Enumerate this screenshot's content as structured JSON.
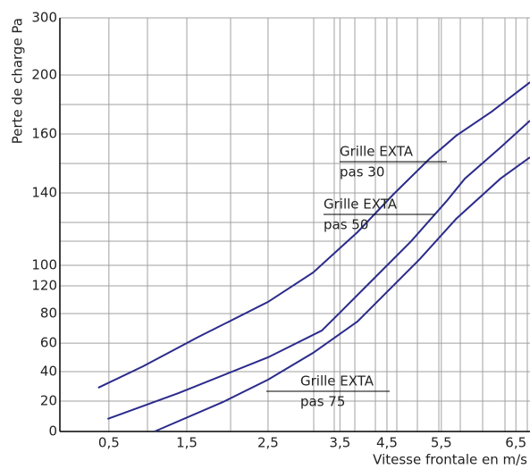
{
  "chart_data": {
    "type": "line",
    "xlabel": "Vitesse frontale en m/s",
    "ylabel": "Perte de charge Pa",
    "xlim": [
      0,
      7
    ],
    "ylim": [
      0,
      300
    ],
    "xticks": [
      {
        "value": 0.73,
        "label": "0,5"
      },
      {
        "value": 1.89,
        "label": "1,5"
      },
      {
        "value": 3.1,
        "label": "2,5"
      },
      {
        "value": 4.17,
        "label": "3,5"
      },
      {
        "value": 4.87,
        "label": "4,5"
      },
      {
        "value": 5.68,
        "label": "5,5"
      },
      {
        "value": 6.79,
        "label": "6,5"
      }
    ],
    "yticks": [
      0,
      {
        "value": 22,
        "label": "20"
      },
      {
        "value": 43.4,
        "label": "40"
      },
      {
        "value": 64.1,
        "label": "60"
      },
      {
        "value": 85.5,
        "label": "80"
      },
      {
        "value": 105.6,
        "label": "120"
      },
      {
        "value": 120.5,
        "label": "100"
      },
      {
        "value": 173,
        "label": "140"
      },
      {
        "value": 215.8,
        "label": "160"
      },
      {
        "value": 258.5,
        "label": "200"
      },
      300
    ],
    "grid": true,
    "series": [
      {
        "color": "#2b2b8c",
        "x": [
          0.57,
          1.24,
          2.04,
          3.1,
          3.77,
          4.43,
          4.96,
          5.5,
          5.9,
          6.43,
          7.0
        ],
        "values": [
          31.7,
          47.3,
          68.0,
          94.0,
          115.3,
          144.5,
          171.7,
          197.6,
          214.5,
          232.0,
          253.3
        ]
      },
      {
        "color": "#2b2b8c",
        "x": [
          0.71,
          1.77,
          3.1,
          3.9,
          4.17,
          4.7,
          5.23,
          5.76,
          6.03,
          6.56,
          7.0
        ],
        "values": [
          9.1,
          27.9,
          53.8,
          73.2,
          86.2,
          112.1,
          138.0,
          167.2,
          183.4,
          206.0,
          225.5
        ]
      },
      {
        "color": "#2b2b8c",
        "x": [
          1.41,
          2.43,
          3.1,
          3.77,
          4.43,
          4.96,
          5.36,
          5.9,
          6.56,
          7.0
        ],
        "values": [
          0,
          21.4,
          37.6,
          57.0,
          79.7,
          105.6,
          125.1,
          154.2,
          183.4,
          198.9
        ]
      }
    ],
    "annotations": [
      {
        "lines": [
          "Grille EXTA",
          "pas 30"
        ]
      },
      {
        "lines": [
          "Grille EXTA",
          "pas 50"
        ]
      },
      {
        "lines": [
          "Grille EXTA",
          "pas 75"
        ]
      }
    ]
  }
}
